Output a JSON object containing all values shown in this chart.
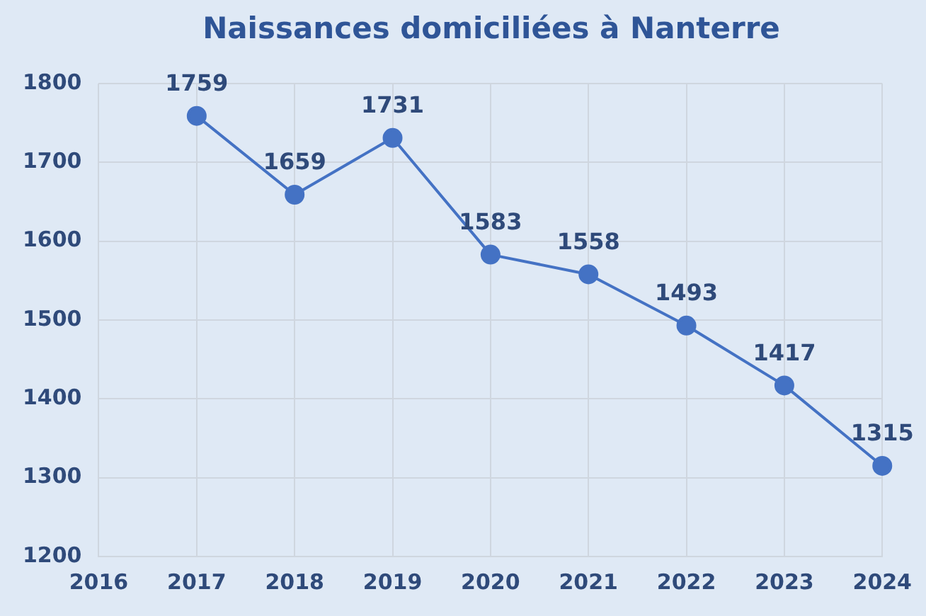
{
  "chart_data": {
    "type": "line",
    "title": "Naissances  domiciliées à Nanterre",
    "x": [
      2017,
      2018,
      2019,
      2020,
      2021,
      2022,
      2023,
      2024
    ],
    "series": [
      {
        "color": "#4472c4",
        "values": [
          1759,
          1659,
          1731,
          1583,
          1558,
          1493,
          1417,
          1315
        ]
      }
    ],
    "xlim": [
      2016,
      2024
    ],
    "xticks": [
      2016,
      2017,
      2018,
      2019,
      2020,
      2021,
      2022,
      2023,
      2024
    ],
    "ylim": [
      1200,
      1800
    ],
    "yticks": [
      1200,
      1300,
      1400,
      1500,
      1600,
      1700,
      1800
    ],
    "grid": true,
    "marker": "circle",
    "line_style": "solid",
    "data_labels": true,
    "legend": false
  }
}
